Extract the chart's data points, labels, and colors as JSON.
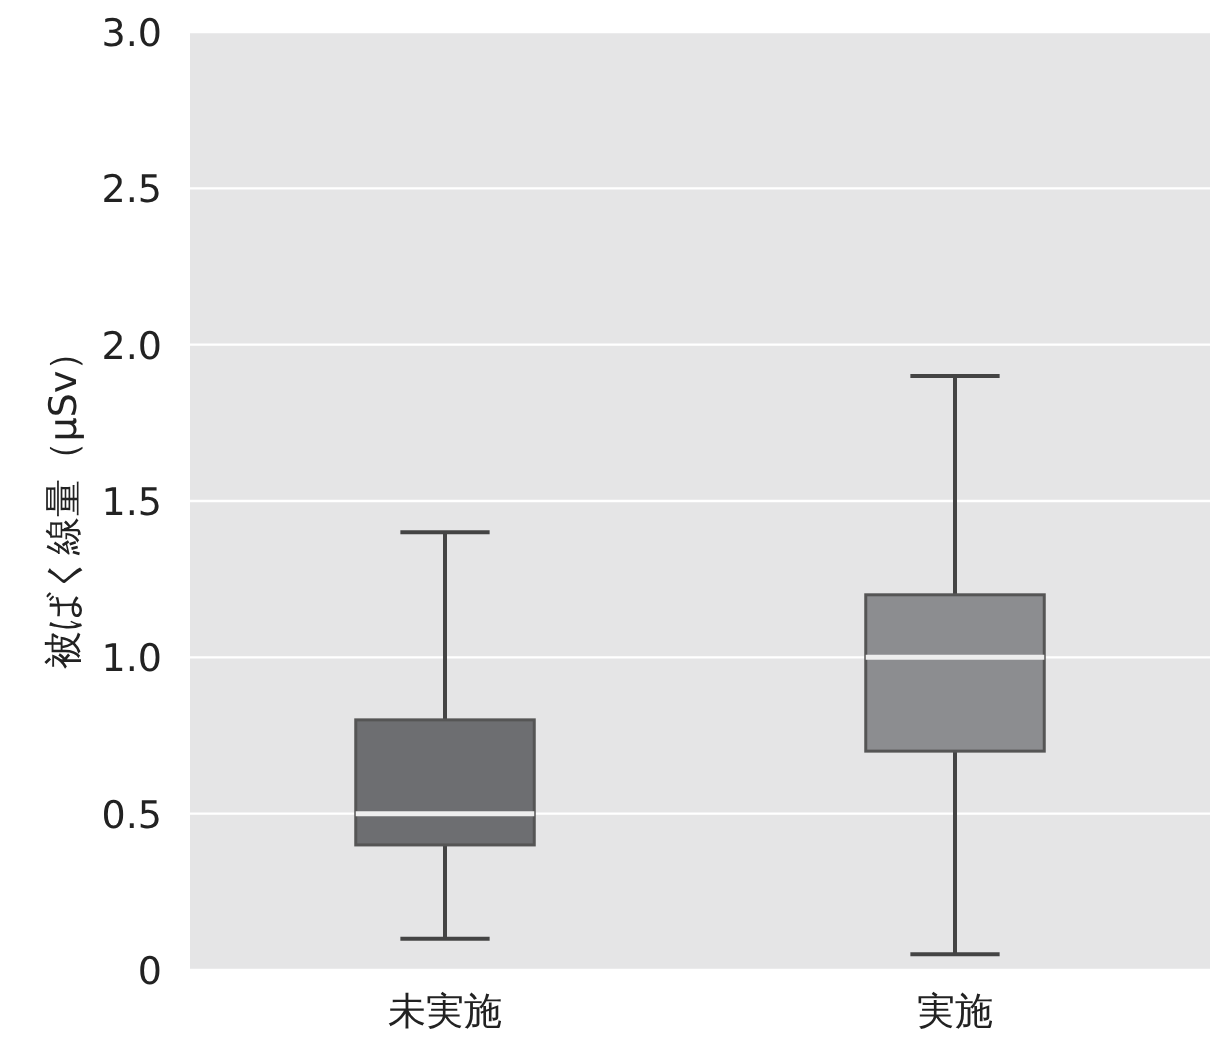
{
  "chart_data": {
    "type": "box",
    "ylabel": "被ばく線量（μSv）",
    "categories": [
      "未実施",
      "実施"
    ],
    "colors": [
      "#6d6e71",
      "#8c8d90"
    ],
    "boxes": [
      {
        "low": 0.1,
        "q1": 0.4,
        "median": 0.5,
        "q3": 0.8,
        "high": 1.4
      },
      {
        "low": 0.05,
        "q1": 0.7,
        "median": 1.0,
        "q3": 1.2,
        "high": 1.9
      }
    ],
    "ylim": [
      0,
      3
    ],
    "yticks": [
      0,
      0.5,
      {
        "value": 1,
        "label": "1.0"
      },
      1.5,
      {
        "value": 2,
        "label": "2.0"
      },
      2.5,
      {
        "value": 3,
        "label": "3.0"
      }
    ],
    "grid": "y"
  }
}
